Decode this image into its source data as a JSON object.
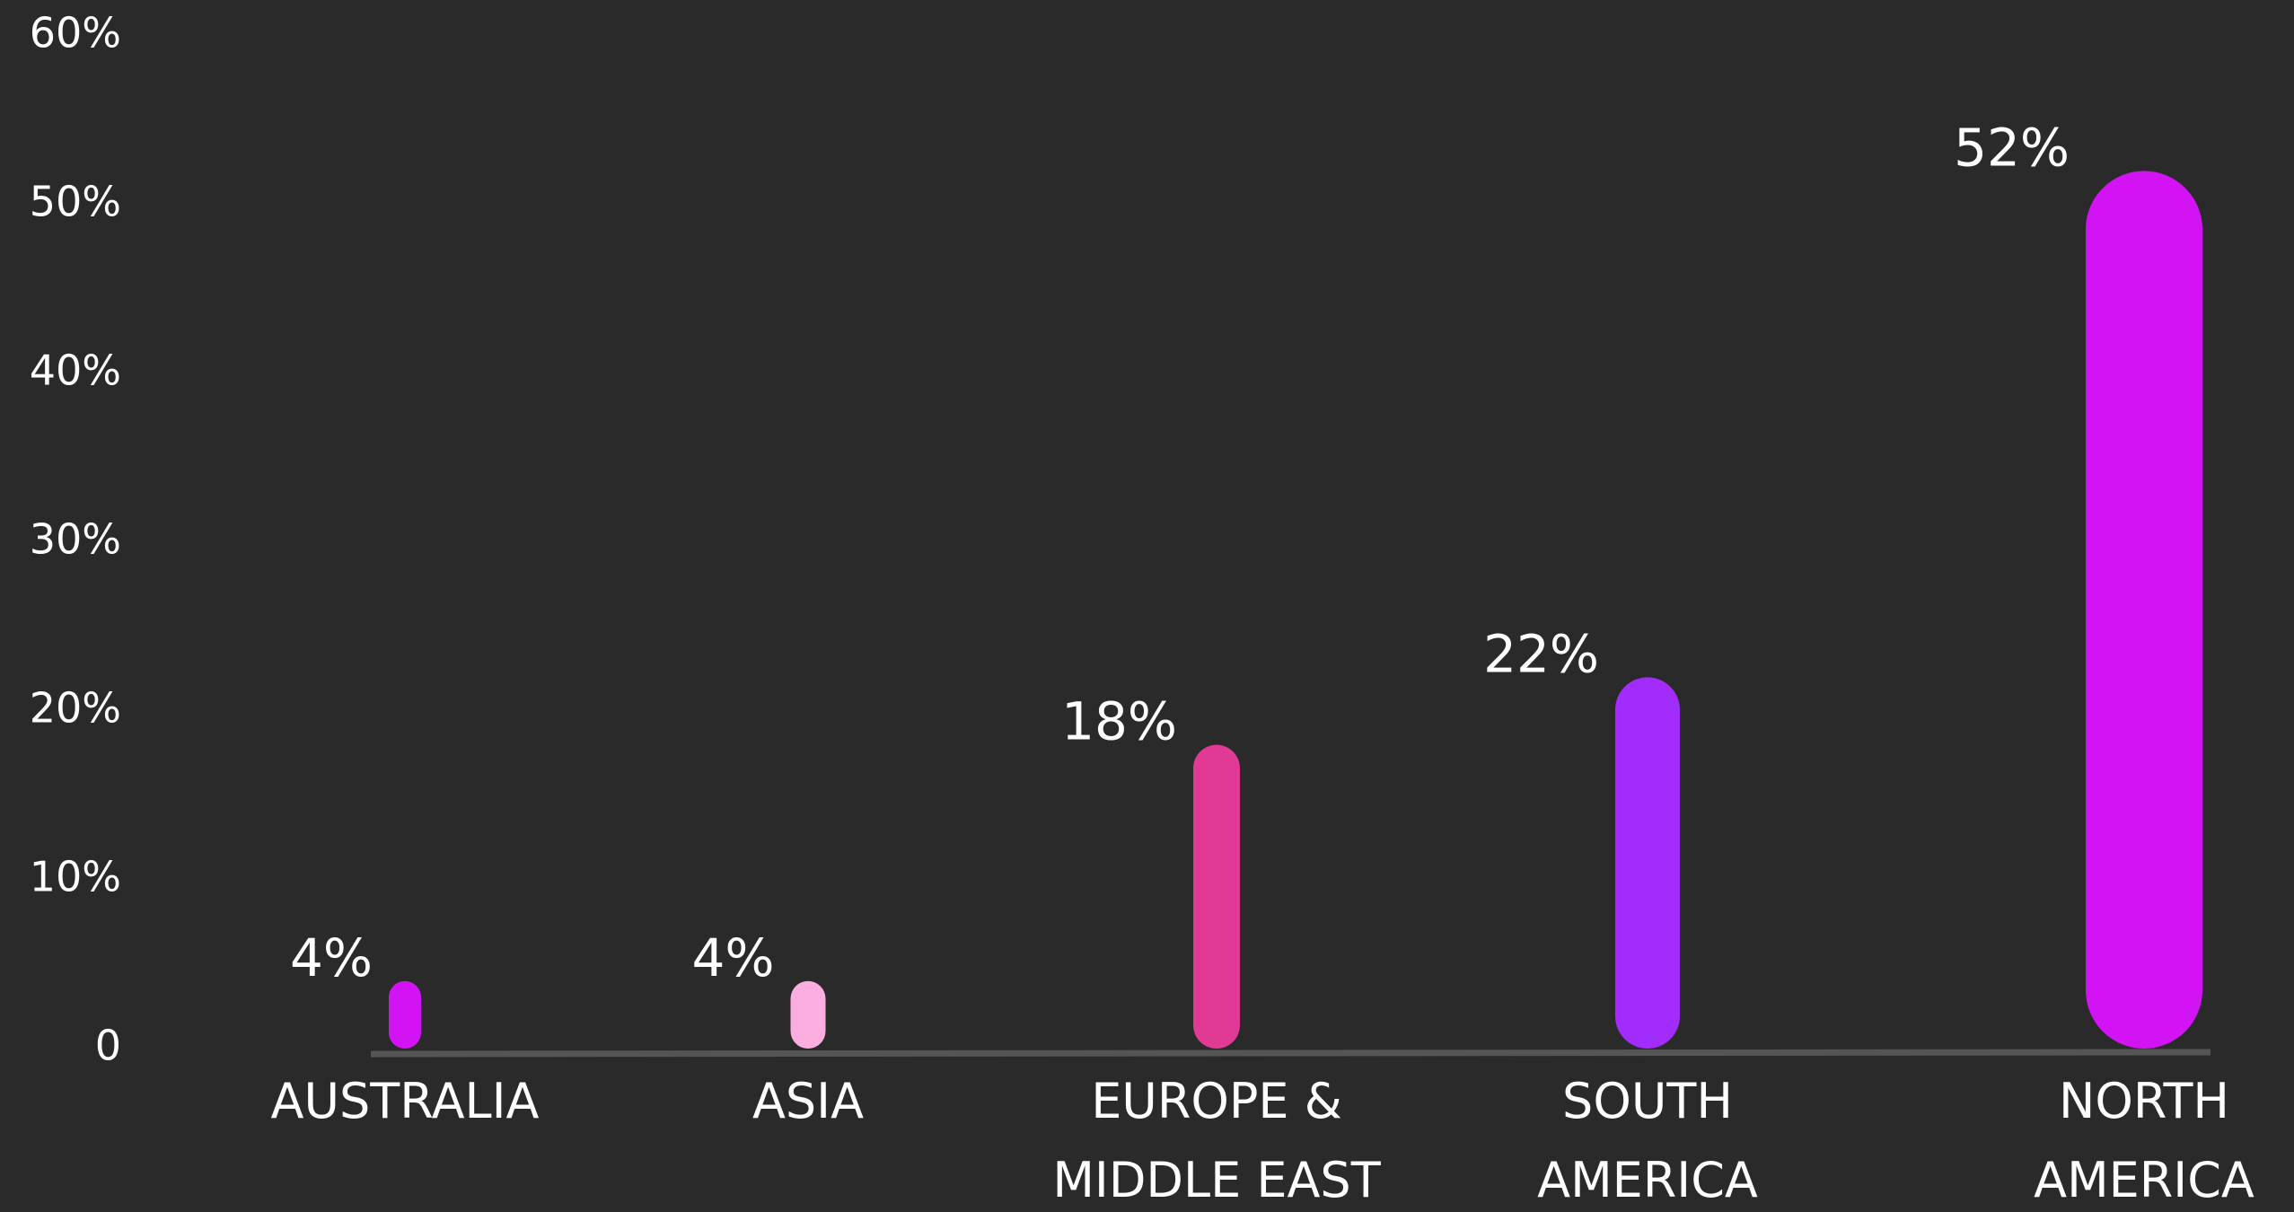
{
  "chart_data": {
    "type": "bar",
    "categories": [
      "AUSTRALIA",
      "ASIA",
      "EUROPE &\nMIDDLE EAST",
      "SOUTH\nAMERICA",
      "NORTH\nAMERICA"
    ],
    "values": [
      4,
      4,
      18,
      22,
      52
    ],
    "value_labels": [
      "4%",
      "4%",
      "18%",
      "22%",
      "52%"
    ],
    "colors": [
      "#d214f5",
      "#fdaee0",
      "#e13a95",
      "#a12cfb",
      "#d214f5"
    ],
    "ylim": [
      0,
      60
    ],
    "yticks": [
      0,
      {
        "value": 10,
        "label": "10%"
      },
      {
        "value": 20,
        "label": "20%"
      },
      {
        "value": 30,
        "label": "30%"
      },
      {
        "value": 40,
        "label": "40%"
      },
      {
        "value": 50,
        "label": "50%"
      },
      {
        "value": 60,
        "label": "60%"
      }
    ],
    "grid": false
  }
}
